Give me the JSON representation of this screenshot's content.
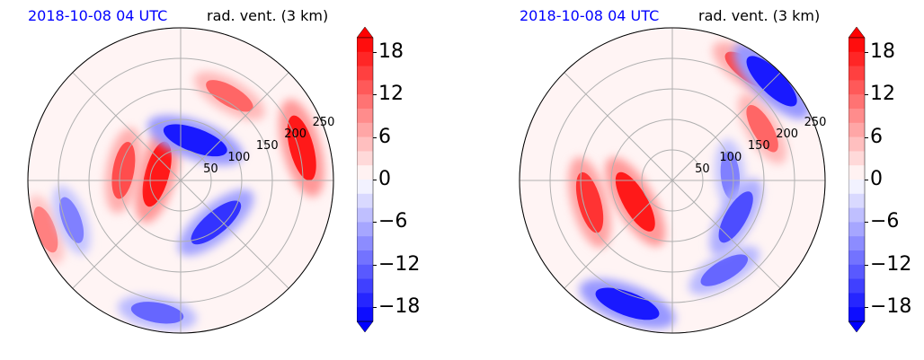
{
  "colors": {
    "strong_red": "#ff0000",
    "strong_blue": "#0000ff",
    "near_zero": "#fff4f4",
    "grid": "#b0b0b0",
    "date_text": "#0000ff"
  },
  "colorbar": {
    "ticks": [
      "18",
      "12",
      "6",
      "0",
      "−6",
      "−12",
      "−18"
    ],
    "tick_values": [
      18,
      12,
      6,
      0,
      -6,
      -12,
      -18
    ],
    "vmin": -20,
    "vmax": 20,
    "levels": [
      -20,
      -18,
      -16,
      -14,
      -12,
      -10,
      -8,
      -6,
      -4,
      -2,
      0,
      2,
      4,
      6,
      8,
      10,
      12,
      14,
      16,
      18,
      20
    ],
    "extend": "both"
  },
  "panels": [
    {
      "date": "2018-10-08 04 UTC",
      "field": "rad. vent. (3 km)",
      "ring_labels": [
        "50",
        "100",
        "150",
        "200",
        "250"
      ]
    },
    {
      "date": "2018-10-08 04 UTC",
      "field": "rad. vent. (3 km)",
      "ring_labels": [
        "50",
        "100",
        "150",
        "200",
        "250"
      ]
    }
  ],
  "chart_data": [
    {
      "type": "heatmap",
      "projection": "polar",
      "title": "rad. vent. (3 km)",
      "subtitle": "2018-10-08 04 UTC",
      "r_ticks": [
        50,
        100,
        150,
        200,
        250
      ],
      "r_max": 250,
      "theta_grid_deg": [
        0,
        45,
        90,
        135,
        180,
        225,
        270,
        315
      ],
      "value_range": [
        -20,
        20
      ],
      "colormap": "bwr",
      "features": [
        {
          "sign": "positive",
          "value": 18,
          "theta_deg": 165,
          "r": 40
        },
        {
          "sign": "positive",
          "value": 14,
          "theta_deg": 170,
          "r": 95
        },
        {
          "sign": "positive",
          "value": 12,
          "theta_deg": 60,
          "r": 160
        },
        {
          "sign": "positive",
          "value": 18,
          "theta_deg": 15,
          "r": 205
        },
        {
          "sign": "positive",
          "value": 10,
          "theta_deg": 200,
          "r": 235
        },
        {
          "sign": "negative",
          "value": -18,
          "theta_deg": 70,
          "r": 70
        },
        {
          "sign": "negative",
          "value": -10,
          "theta_deg": 200,
          "r": 190
        },
        {
          "sign": "negative",
          "value": -16,
          "theta_deg": 310,
          "r": 90
        },
        {
          "sign": "negative",
          "value": -12,
          "theta_deg": 260,
          "r": 220
        }
      ]
    },
    {
      "type": "heatmap",
      "projection": "polar",
      "title": "rad. vent. (3 km)",
      "subtitle": "2018-10-08 04 UTC",
      "r_ticks": [
        50,
        100,
        150,
        200,
        250
      ],
      "r_max": 250,
      "theta_grid_deg": [
        0,
        45,
        90,
        135,
        180,
        225,
        270,
        315
      ],
      "value_range": [
        -20,
        20
      ],
      "colormap": "bwr",
      "features": [
        {
          "sign": "positive",
          "value": 18,
          "theta_deg": 210,
          "r": 70
        },
        {
          "sign": "positive",
          "value": 16,
          "theta_deg": 195,
          "r": 140
        },
        {
          "sign": "positive",
          "value": 14,
          "theta_deg": 55,
          "r": 220
        },
        {
          "sign": "positive",
          "value": 12,
          "theta_deg": 30,
          "r": 170
        },
        {
          "sign": "negative",
          "value": -18,
          "theta_deg": 45,
          "r": 230
        },
        {
          "sign": "negative",
          "value": -18,
          "theta_deg": 250,
          "r": 215
        },
        {
          "sign": "negative",
          "value": -12,
          "theta_deg": 300,
          "r": 170
        },
        {
          "sign": "negative",
          "value": -10,
          "theta_deg": 5,
          "r": 95
        },
        {
          "sign": "negative",
          "value": -14,
          "theta_deg": 330,
          "r": 120
        }
      ]
    }
  ]
}
